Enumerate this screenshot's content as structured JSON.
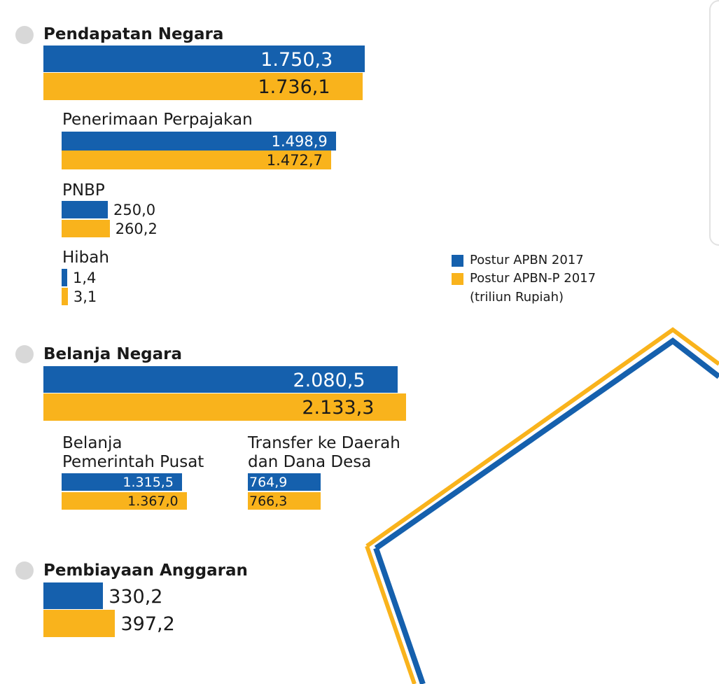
{
  "colors": {
    "apbn": "#1560ad",
    "apbnp": "#f9b31c",
    "dot": "#d8d8d8"
  },
  "legend": {
    "items": [
      {
        "label": "Postur APBN 2017",
        "color": "#1560ad"
      },
      {
        "label": "Postur APBN-P 2017",
        "color": "#f9b31c"
      }
    ],
    "unit": "(triliun Rupiah)"
  },
  "chart_data": {
    "type": "bar",
    "orientation": "horizontal",
    "unit": "(triliun Rupiah)",
    "series": [
      {
        "name": "Postur APBN 2017",
        "color": "#1560ad"
      },
      {
        "name": "Postur APBN-P 2017",
        "color": "#f9b31c"
      }
    ],
    "groups": [
      {
        "title": "Pendapatan Negara",
        "level": "section",
        "labels": [
          "1.750,3",
          "1.736,1"
        ],
        "values": [
          1750.3,
          1736.1
        ]
      },
      {
        "title": "Penerimaan Perpajakan",
        "level": "sub",
        "labels": [
          "1.498,9",
          "1.472,7"
        ],
        "values": [
          1498.9,
          1472.7
        ]
      },
      {
        "title": "PNBP",
        "level": "sub",
        "labels": [
          "250,0",
          "260,2"
        ],
        "values": [
          250.0,
          260.2
        ]
      },
      {
        "title": "Hibah",
        "level": "sub",
        "labels": [
          "1,4",
          "3,1"
        ],
        "values": [
          1.4,
          3.1
        ]
      },
      {
        "title": "Belanja Negara",
        "level": "section",
        "labels": [
          "2.080,5",
          "2.133,3"
        ],
        "values": [
          2080.5,
          2133.3
        ]
      },
      {
        "title_lines": [
          "Belanja",
          "Pemerintah Pusat"
        ],
        "level": "sub",
        "labels": [
          "1.315,5",
          "1.367,0"
        ],
        "values": [
          1315.5,
          1367.0
        ]
      },
      {
        "title_lines": [
          "Transfer ke Daerah",
          "dan Dana Desa"
        ],
        "level": "sub",
        "labels": [
          "764,9",
          "766,3"
        ],
        "values": [
          764.9,
          766.3
        ]
      },
      {
        "title": "Pembiayaan Anggaran",
        "level": "section",
        "labels": [
          "330,2",
          "397,2"
        ],
        "values": [
          330.2,
          397.2
        ]
      }
    ]
  }
}
